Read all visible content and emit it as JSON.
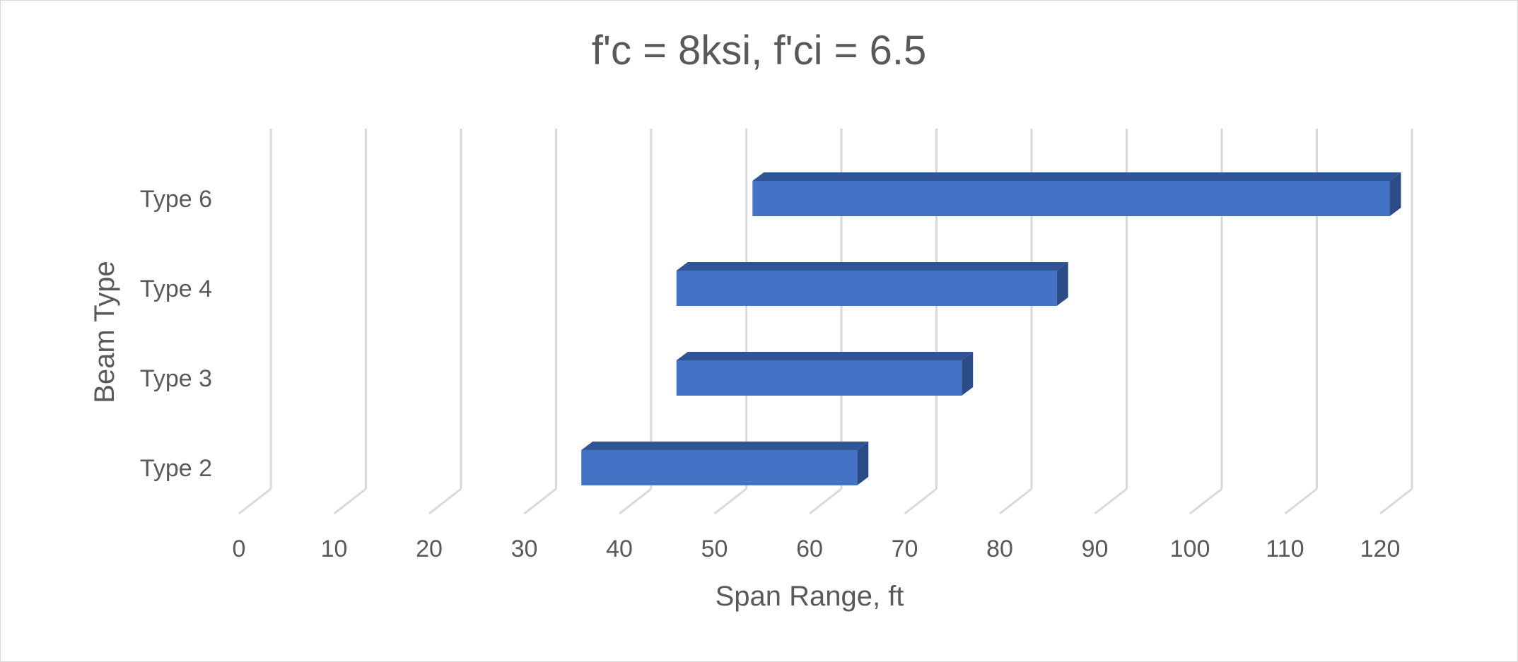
{
  "chart_data": {
    "type": "bar",
    "orientation": "horizontal",
    "style": "3d-floating-range",
    "title": "f'c = 8ksi, f'ci = 6.5",
    "xlabel": "Span Range, ft",
    "ylabel": "Beam Type",
    "xlim": [
      0,
      120
    ],
    "xticks": [
      0,
      10,
      20,
      30,
      40,
      50,
      60,
      70,
      80,
      90,
      100,
      110,
      120
    ],
    "grid": "vertical",
    "legend": "none",
    "categories": [
      "Type 2",
      "Type 3",
      "Type 4",
      "Type 6"
    ],
    "series": [
      {
        "ranges": [
          [
            36,
            65
          ],
          [
            46,
            76
          ],
          [
            46,
            86
          ],
          [
            54,
            121
          ]
        ]
      }
    ],
    "colors": {
      "bar_front": "#4472c4",
      "bar_top": "#2f5597",
      "bar_side": "#2b4c86",
      "gridline": "#d9d9d9",
      "text": "#595959"
    }
  }
}
